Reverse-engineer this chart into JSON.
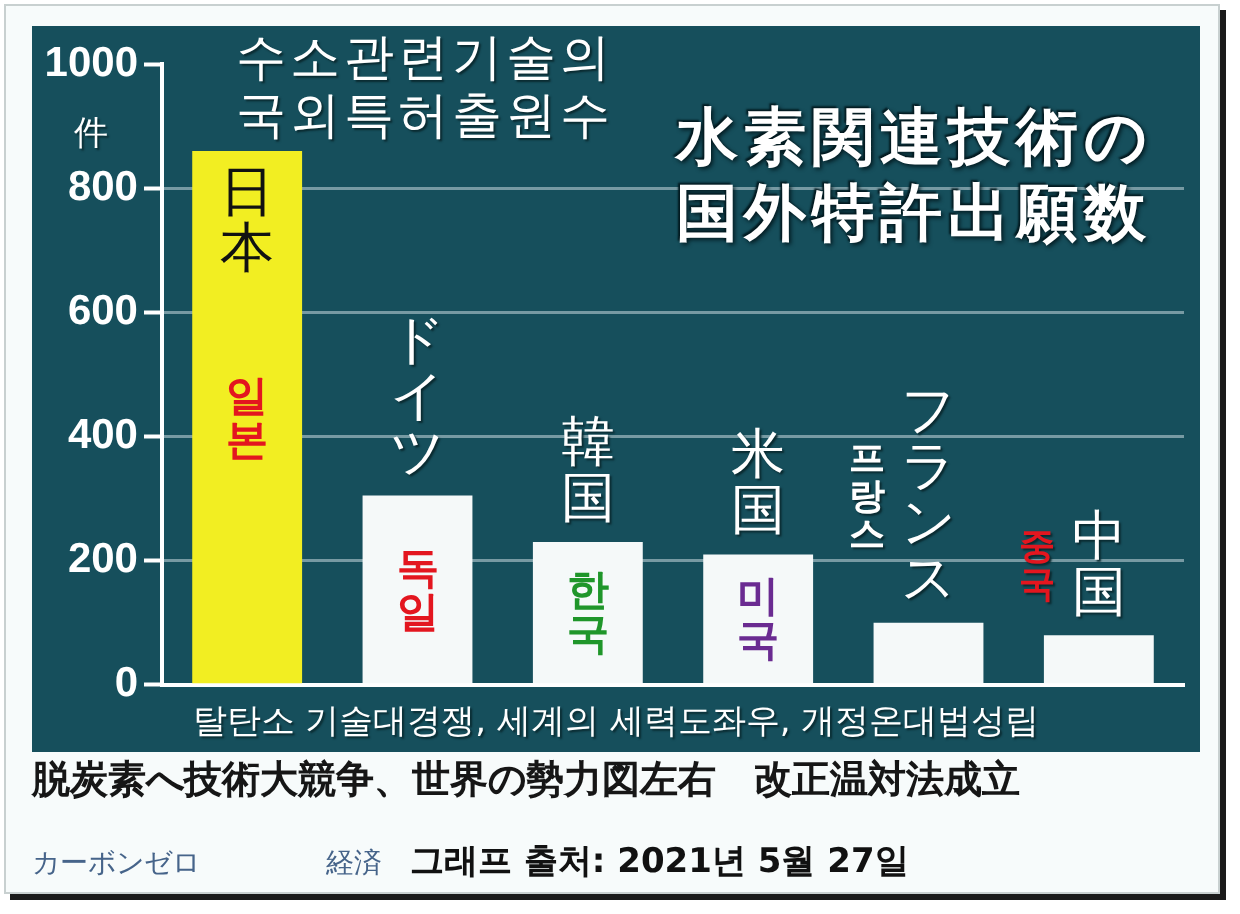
{
  "chart_data": {
    "type": "bar",
    "title": "水素関連技術の国外特許出願数",
    "subtitle": "수소관련기술의 국외특허출원수",
    "ylabel": "件",
    "categories": [
      "日本",
      "ドイツ",
      "韓国",
      "米国",
      "フランス",
      "中国"
    ],
    "values": [
      860,
      305,
      230,
      210,
      100,
      80
    ],
    "colors": [
      "#f2ee22",
      "#f5f9f9",
      "#f5f9f9",
      "#f5f9f9",
      "#f5f9f9",
      "#f5f9f9"
    ],
    "ylim": [
      0,
      1000
    ],
    "yticks": [
      0,
      200,
      400,
      600,
      800,
      1000
    ],
    "grid": "y",
    "annotations": [
      "일본",
      "독일",
      "한국",
      "미국",
      "프랑스",
      "중국",
      "탈탄소 기술대경쟁, 세계의 세력도좌우, 개정온대법성립",
      "脱炭素へ技術大競争、世界の勢力図左右　改正温対法成立",
      "カーボンゼロ",
      "経済",
      "그래프 출처: 2021년 5월 27일"
    ]
  }
}
